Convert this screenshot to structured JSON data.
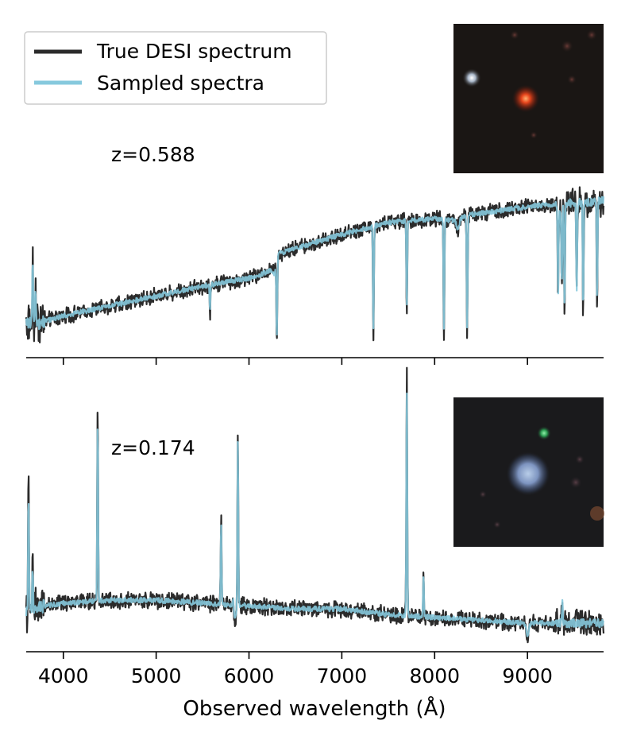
{
  "chart_data": {
    "type": "line",
    "xlabel": "Observed wavelength (Å)",
    "xlim": [
      3600,
      9820
    ],
    "x_ticks": [
      "4000",
      "5000",
      "6000",
      "7000",
      "8000",
      "9000"
    ],
    "grid": false,
    "legend": {
      "placement": "top-left",
      "entries": [
        {
          "label": "True DESI spectrum",
          "color": "#2b2b2b"
        },
        {
          "label": "Sampled spectra",
          "color": "#86c9dd"
        }
      ]
    },
    "colors": {
      "true": "#2b2b2b",
      "sampled": "#86c9dd"
    },
    "panels": [
      {
        "redshift_label": "z=0.588",
        "ylim": [
          0,
          1
        ],
        "continuum": [
          [
            3600,
            0.18
          ],
          [
            3700,
            0.17
          ],
          [
            4000,
            0.21
          ],
          [
            4500,
            0.26
          ],
          [
            5000,
            0.31
          ],
          [
            5500,
            0.36
          ],
          [
            6000,
            0.4
          ],
          [
            6250,
            0.44
          ],
          [
            6300,
            0.52
          ],
          [
            6500,
            0.55
          ],
          [
            7000,
            0.62
          ],
          [
            7500,
            0.68
          ],
          [
            8000,
            0.7
          ],
          [
            8200,
            0.69
          ],
          [
            8400,
            0.72
          ],
          [
            9000,
            0.76
          ],
          [
            9500,
            0.78
          ],
          [
            9820,
            0.79
          ]
        ],
        "true_lines": [
          [
            3670,
            0.5
          ],
          [
            3700,
            0.35
          ],
          [
            5580,
            0.22
          ],
          [
            6300,
            0.1
          ],
          [
            7340,
            0.1
          ],
          [
            7700,
            0.22
          ],
          [
            8100,
            0.1
          ],
          [
            8350,
            0.1
          ],
          [
            9330,
            0.3
          ],
          [
            9370,
            0.4
          ],
          [
            9400,
            0.2
          ],
          [
            9530,
            0.3
          ],
          [
            9600,
            0.2
          ],
          [
            9750,
            0.25
          ]
        ],
        "absorptions": [
          [
            6280,
            0.06
          ],
          [
            8250,
            0.05
          ],
          [
            9360,
            0.06
          ]
        ],
        "inset_image": "galaxy-cutout-red-compact"
      },
      {
        "redshift_label": "z=0.174",
        "ylim": [
          0,
          1
        ],
        "continuum": [
          [
            3600,
            0.14
          ],
          [
            3800,
            0.16
          ],
          [
            4000,
            0.17
          ],
          [
            4500,
            0.18
          ],
          [
            5000,
            0.18
          ],
          [
            5500,
            0.17
          ],
          [
            6000,
            0.16
          ],
          [
            6500,
            0.15
          ],
          [
            7000,
            0.15
          ],
          [
            7500,
            0.13
          ],
          [
            8000,
            0.12
          ],
          [
            8500,
            0.11
          ],
          [
            9000,
            0.1
          ],
          [
            9500,
            0.1
          ],
          [
            9820,
            0.1
          ]
        ],
        "true_lines": [
          [
            3625,
            0.58
          ],
          [
            3670,
            0.3
          ],
          [
            4370,
            0.86
          ],
          [
            5700,
            0.47
          ],
          [
            5830,
            0.2
          ],
          [
            5880,
            0.79
          ],
          [
            7700,
            0.98
          ],
          [
            7880,
            0.28
          ],
          [
            9375,
            0.18
          ]
        ],
        "absorptions": [
          [
            5850,
            0.05
          ],
          [
            9000,
            0.04
          ]
        ],
        "inset_image": "galaxy-cutout-blue-extended"
      }
    ]
  }
}
